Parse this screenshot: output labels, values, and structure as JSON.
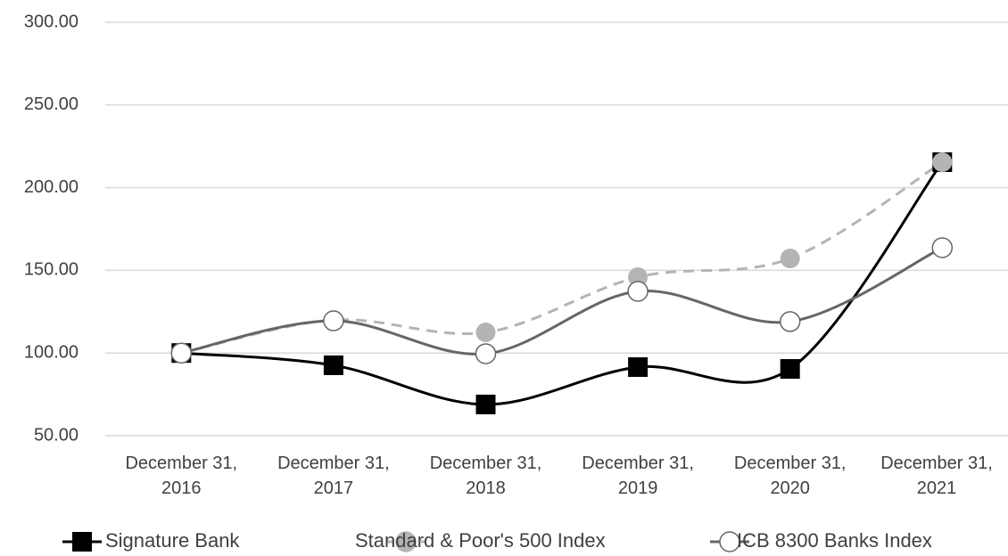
{
  "chart_data": {
    "type": "line",
    "categories": [
      "December 31, 2016",
      "December 31, 2017",
      "December 31, 2018",
      "December 31, 2019",
      "December 31, 2020",
      "December 31, 2021"
    ],
    "series": [
      {
        "name": "Signature Bank",
        "color": "#000000",
        "marker": "square",
        "dashed": false,
        "values": [
          100,
          92.6,
          68.9,
          91.5,
          90.4,
          215.4
        ]
      },
      {
        "name": "Standard & Poor's 500 Index",
        "color": "#b4b4b4",
        "marker": "filled-circle",
        "dashed": true,
        "values": [
          100,
          120,
          112.5,
          145.9,
          157.2,
          215.4
        ]
      },
      {
        "name": "ICB 8300 Banks Index",
        "color": "#666666",
        "marker": "open-circle",
        "dashed": false,
        "values": [
          100,
          119.5,
          99.6,
          137.3,
          119,
          163.7
        ]
      }
    ],
    "ylim": [
      50,
      300
    ],
    "yticks": [
      {
        "value": 50,
        "label": "50.00"
      },
      {
        "value": 100,
        "label": "100.00"
      },
      {
        "value": 150,
        "label": "150.00"
      },
      {
        "value": 200,
        "label": "200.00"
      },
      {
        "value": 250,
        "label": "250.00"
      },
      {
        "value": 300,
        "label": "300.00"
      }
    ],
    "grid": true,
    "legend": "bottom"
  }
}
